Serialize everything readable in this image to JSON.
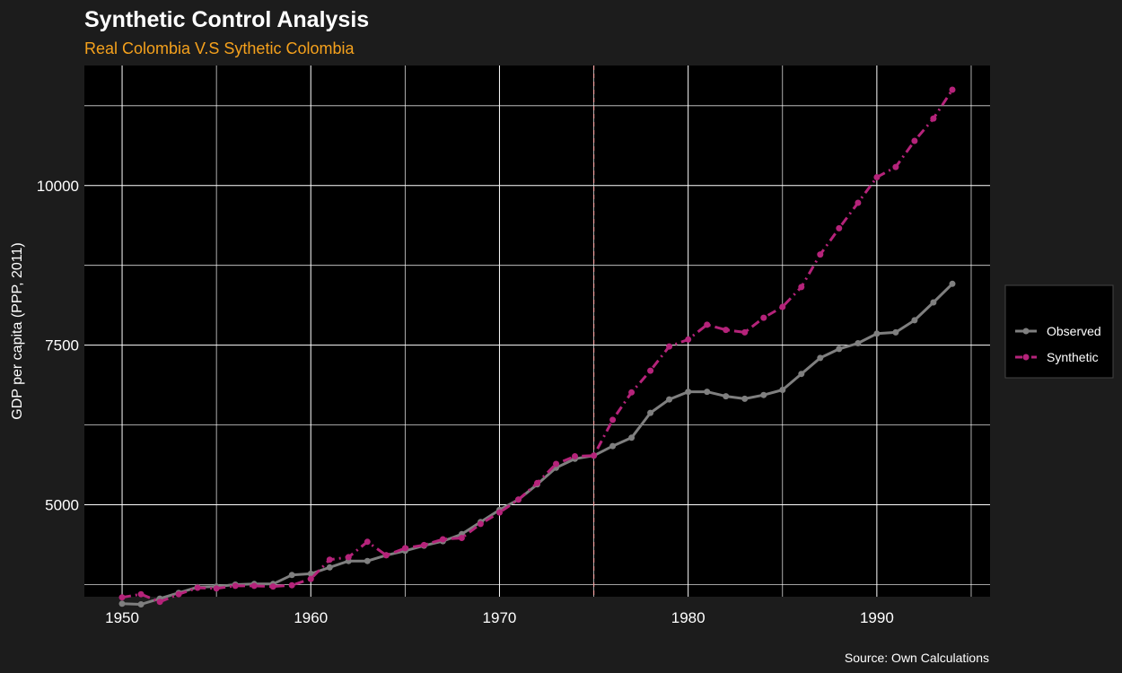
{
  "colors": {
    "background": "#1c1c1c",
    "panel": "#000000",
    "grid": "#ffffff",
    "title": "#ffffff",
    "subtitle": "#f5a11c",
    "axis_text": "#ffffff",
    "observed": "#7f7f7f",
    "synthetic": "#b5237a",
    "treatment_line": "#f4a3a3",
    "legend_bg": "#000000",
    "legend_border": "#444444"
  },
  "chart_data": {
    "type": "line",
    "title": "Synthetic Control Analysis",
    "subtitle": "Real Colombia V.S Sythetic Colombia",
    "xlabel": "",
    "ylabel": "GDP per capita (PPP, 2011)",
    "caption": "Source: Own Calculations",
    "xlim": [
      1948,
      1996
    ],
    "ylim": [
      3560,
      11880
    ],
    "x_ticks": [
      1950,
      1960,
      1970,
      1980,
      1990
    ],
    "x_tick_labels": [
      "1950",
      "1960",
      "1970",
      "1980",
      "1990"
    ],
    "y_ticks": [
      5000,
      7500,
      10000
    ],
    "y_tick_labels": [
      "5000",
      "7500",
      "10000"
    ],
    "y_minor_ticks": [
      3750,
      6250,
      8750,
      11250
    ],
    "x_minor_ticks": [
      1955,
      1965,
      1975,
      1985,
      1995
    ],
    "treatment_year": 1975,
    "grid": true,
    "legend_position": "right",
    "x": [
      1950,
      1951,
      1952,
      1953,
      1954,
      1955,
      1956,
      1957,
      1958,
      1959,
      1960,
      1961,
      1962,
      1963,
      1964,
      1965,
      1966,
      1967,
      1968,
      1969,
      1970,
      1971,
      1972,
      1973,
      1974,
      1975,
      1976,
      1977,
      1978,
      1979,
      1980,
      1981,
      1982,
      1983,
      1984,
      1985,
      1986,
      1987,
      1988,
      1989,
      1990,
      1991,
      1992,
      1993,
      1994
    ],
    "series": [
      {
        "name": "Observed",
        "style": "solid",
        "values": [
          3450,
          3440,
          3530,
          3620,
          3710,
          3720,
          3750,
          3760,
          3760,
          3900,
          3920,
          4020,
          4120,
          4120,
          4210,
          4280,
          4360,
          4430,
          4540,
          4730,
          4920,
          5080,
          5320,
          5580,
          5720,
          5770,
          5920,
          6050,
          6440,
          6650,
          6770,
          6770,
          6700,
          6660,
          6720,
          6800,
          7050,
          7300,
          7440,
          7530,
          7680,
          7700,
          7890,
          8170,
          8460
        ]
      },
      {
        "name": "Synthetic",
        "style": "dashdot",
        "values": [
          3550,
          3600,
          3480,
          3600,
          3700,
          3690,
          3730,
          3730,
          3720,
          3740,
          3840,
          4140,
          4180,
          4420,
          4210,
          4320,
          4370,
          4460,
          4480,
          4700,
          4880,
          5080,
          5340,
          5640,
          5760,
          5770,
          6330,
          6760,
          7100,
          7480,
          7590,
          7820,
          7740,
          7700,
          7930,
          8100,
          8410,
          8920,
          9330,
          9730,
          10130,
          10290,
          10700,
          11050,
          11500
        ]
      }
    ]
  }
}
